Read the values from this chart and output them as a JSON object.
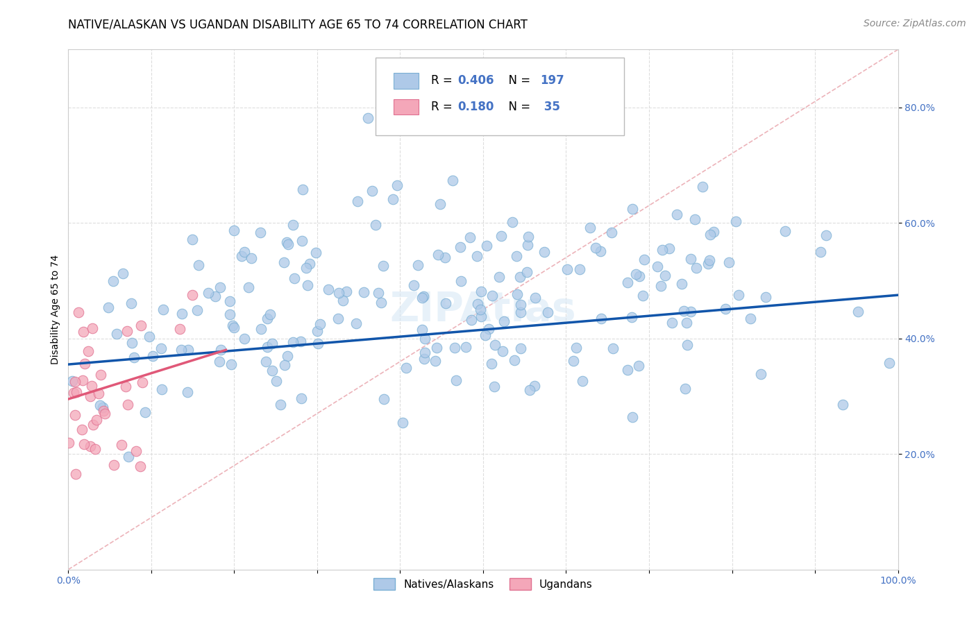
{
  "title": "NATIVE/ALASKAN VS UGANDAN DISABILITY AGE 65 TO 74 CORRELATION CHART",
  "source": "Source: ZipAtlas.com",
  "ylabel": "Disability Age 65 to 74",
  "xlim": [
    0.0,
    1.0
  ],
  "ylim": [
    0.0,
    0.9
  ],
  "xticks": [
    0.0,
    0.1,
    0.2,
    0.3,
    0.4,
    0.5,
    0.6,
    0.7,
    0.8,
    0.9,
    1.0
  ],
  "xticklabels": [
    "0.0%",
    "",
    "",
    "",
    "",
    "",
    "",
    "",
    "",
    "",
    "100.0%"
  ],
  "yticks": [
    0.2,
    0.4,
    0.6,
    0.8
  ],
  "yticklabels": [
    "20.0%",
    "40.0%",
    "60.0%",
    "80.0%"
  ],
  "blue_color": "#AEC9E8",
  "blue_edge_color": "#7AAFD4",
  "pink_color": "#F4A7B9",
  "pink_edge_color": "#E07090",
  "blue_line_color": "#1155AA",
  "pink_line_color": "#E05878",
  "dash_line_color": "#E8A0A8",
  "legend_R1": "0.406",
  "legend_N1": "197",
  "legend_R2": "0.180",
  "legend_N2": "35",
  "title_fontsize": 12,
  "axis_label_fontsize": 10,
  "tick_fontsize": 10,
  "source_fontsize": 10,
  "tick_color": "#4472C4",
  "blue_trend_start_y": 0.355,
  "blue_trend_end_y": 0.475,
  "pink_trend_start_x": 0.0,
  "pink_trend_start_y": 0.295,
  "pink_trend_end_x": 0.19,
  "pink_trend_end_y": 0.38
}
